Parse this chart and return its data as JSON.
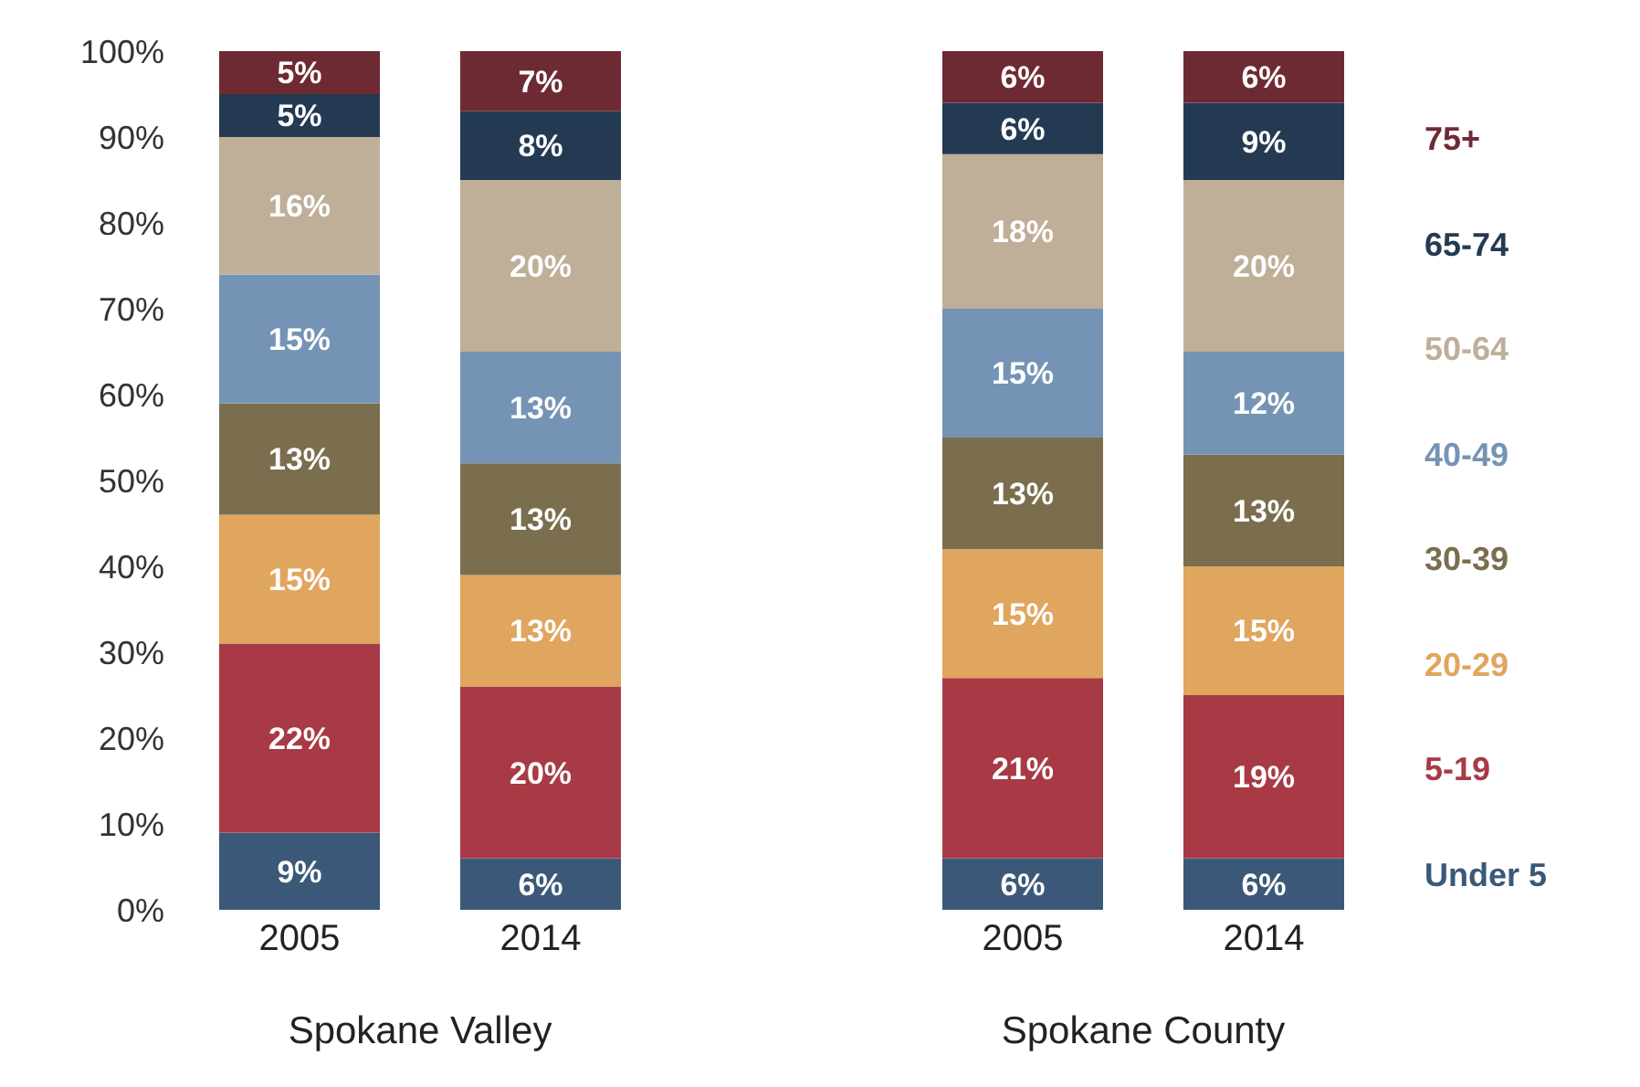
{
  "chart_data": {
    "type": "bar",
    "stacked": true,
    "categories": [
      "2005",
      "2014",
      null,
      "2005",
      "2014"
    ],
    "series": [
      {
        "name": "Under 5",
        "color": "#3b5878",
        "values": [
          9,
          6,
          null,
          6,
          6
        ],
        "value_labels": [
          "9%",
          "6%",
          null,
          "6%",
          "6%"
        ]
      },
      {
        "name": "5-19",
        "color": "#a83a45",
        "values": [
          22,
          20,
          null,
          21,
          19
        ],
        "value_labels": [
          "22%",
          "20%",
          null,
          "21%",
          "19%"
        ]
      },
      {
        "name": "20-29",
        "color": "#e0a55e",
        "values": [
          15,
          13,
          null,
          15,
          15
        ],
        "value_labels": [
          "15%",
          "13%",
          null,
          "15%",
          "15%"
        ]
      },
      {
        "name": "30-39",
        "color": "#7a6e4e",
        "values": [
          13,
          13,
          null,
          13,
          13
        ],
        "value_labels": [
          "13%",
          "13%",
          null,
          "13%",
          "13%"
        ]
      },
      {
        "name": "40-49",
        "color": "#7594b5",
        "values": [
          15,
          13,
          null,
          15,
          12
        ],
        "value_labels": [
          "15%",
          "13%",
          null,
          "15%",
          "12%"
        ]
      },
      {
        "name": "50-64",
        "color": "#bfae98",
        "values": [
          16,
          20,
          null,
          18,
          20
        ],
        "value_labels": [
          "16%",
          "20%",
          null,
          "18%",
          "20%"
        ]
      },
      {
        "name": "65-74",
        "color": "#233a52",
        "values": [
          5,
          8,
          null,
          6,
          9
        ],
        "value_labels": [
          "5%",
          "8%",
          null,
          "6%",
          "9%"
        ]
      },
      {
        "name": "75+",
        "color": "#6e2a33",
        "values": [
          5,
          7,
          null,
          6,
          6
        ],
        "value_labels": [
          "5%",
          "7%",
          null,
          "6%",
          "6%"
        ]
      }
    ],
    "ylim": [
      0,
      100
    ],
    "yticks": [
      {
        "value": 0,
        "label": "0%"
      },
      {
        "value": 10,
        "label": "10%"
      },
      {
        "value": 20,
        "label": "20%"
      },
      {
        "value": 30,
        "label": "30%"
      },
      {
        "value": 40,
        "label": "40%"
      },
      {
        "value": 50,
        "label": "50%"
      },
      {
        "value": 60,
        "label": "60%"
      },
      {
        "value": 70,
        "label": "70%"
      },
      {
        "value": 80,
        "label": "80%"
      },
      {
        "value": 90,
        "label": "90%"
      },
      {
        "value": 100,
        "label": "100%"
      }
    ],
    "annotations": [
      "Spokane Valley",
      "Spokane County"
    ],
    "legend": "right",
    "grid": false
  }
}
